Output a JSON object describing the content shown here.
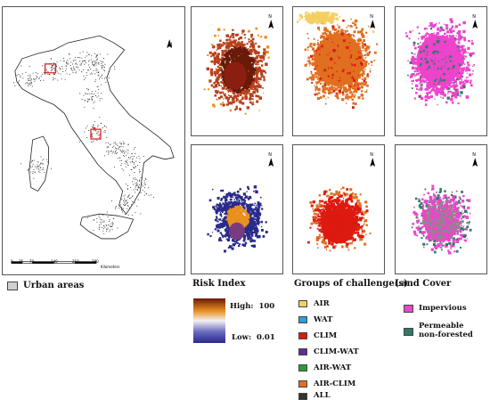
{
  "overview": {
    "scalebar_ticks": [
      "0",
      "35",
      "70",
      "140",
      "210",
      "280"
    ],
    "scalebar_unit": "Kilometers",
    "north": "N",
    "legend_label": "Urban areas",
    "legend_color": "#d0d0d0"
  },
  "columns": [
    {
      "title": "Risk Index"
    },
    {
      "title": "Groups of challenge(s)"
    },
    {
      "title": "Land Cover"
    }
  ],
  "risk_index": {
    "high_label": "High:",
    "high_value": "100",
    "low_label": "Low:",
    "low_value": "0.01",
    "high_color": "#e89020",
    "mid_color": "#f4f0f4",
    "low_color": "#2a2a8a"
  },
  "groups": [
    {
      "label": "AIR",
      "color": "#f5d060"
    },
    {
      "label": "WAT",
      "color": "#2aa0d8"
    },
    {
      "label": "CLIM",
      "color": "#dd1a10"
    },
    {
      "label": "CLIM-WAT",
      "color": "#5a3090"
    },
    {
      "label": "AIR-WAT",
      "color": "#2a9a3a"
    },
    {
      "label": "AIR-CLIM",
      "color": "#e07020"
    },
    {
      "label": "ALL",
      "color": "#333333"
    }
  ],
  "land_cover": [
    {
      "label": "Impervious",
      "color": "#ee44cc"
    },
    {
      "label": "Permeable\nnon-forested",
      "color": "#2f7a6a"
    }
  ],
  "map_north": "N"
}
